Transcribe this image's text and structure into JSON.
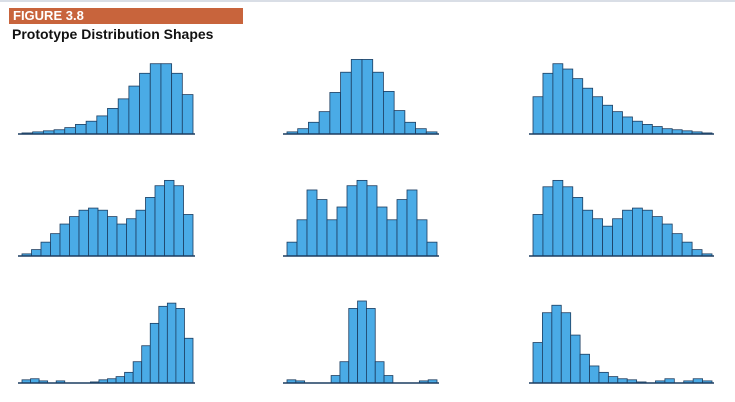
{
  "figure": {
    "label": "FIGURE 3.8",
    "title": "Prototype Distribution Shapes"
  },
  "colors": {
    "bar_fill": "#4aabe6",
    "bar_stroke": "#1c3d60",
    "axis": "#1c3d60",
    "label_bar": "#c8643c"
  },
  "chart_data": [
    {
      "type": "bar",
      "row": 0,
      "col": 0,
      "values": [
        1,
        2,
        3,
        4,
        6,
        9,
        12,
        17,
        24,
        33,
        45,
        57,
        66,
        66,
        57,
        37
      ]
    },
    {
      "type": "bar",
      "row": 0,
      "col": 1,
      "values": [
        2,
        5,
        11,
        21,
        39,
        58,
        70,
        70,
        58,
        40,
        22,
        11,
        5,
        2
      ]
    },
    {
      "type": "bar",
      "row": 0,
      "col": 2,
      "values": [
        35,
        57,
        66,
        61,
        52,
        43,
        35,
        27,
        21,
        16,
        12,
        9,
        7,
        5,
        4,
        3,
        2,
        1
      ]
    },
    {
      "type": "bar",
      "row": 1,
      "col": 0,
      "values": [
        2,
        6,
        13,
        21,
        30,
        37,
        43,
        45,
        43,
        37,
        30,
        35,
        43,
        55,
        66,
        71,
        66,
        39
      ]
    },
    {
      "type": "bar",
      "row": 1,
      "col": 1,
      "values": [
        13,
        34,
        62,
        53,
        34,
        46,
        66,
        71,
        66,
        46,
        34,
        53,
        62,
        34,
        13
      ]
    },
    {
      "type": "bar",
      "row": 1,
      "col": 2,
      "values": [
        39,
        65,
        71,
        65,
        55,
        43,
        35,
        28,
        35,
        43,
        45,
        43,
        37,
        30,
        21,
        13,
        6,
        2
      ]
    },
    {
      "type": "bar",
      "row": 2,
      "col": 0,
      "values": [
        3,
        4,
        2,
        0,
        2,
        0,
        0,
        0,
        1,
        3,
        4,
        6,
        10,
        20,
        35,
        56,
        72,
        75,
        70,
        42
      ]
    },
    {
      "type": "bar",
      "row": 2,
      "col": 1,
      "values": [
        3,
        2,
        0,
        0,
        0,
        7,
        20,
        70,
        77,
        70,
        20,
        7,
        0,
        0,
        0,
        2,
        3
      ]
    },
    {
      "type": "bar",
      "row": 2,
      "col": 2,
      "values": [
        38,
        66,
        73,
        66,
        45,
        27,
        16,
        10,
        6,
        4,
        3,
        1,
        0,
        2,
        4,
        0,
        2,
        4,
        2
      ]
    }
  ]
}
